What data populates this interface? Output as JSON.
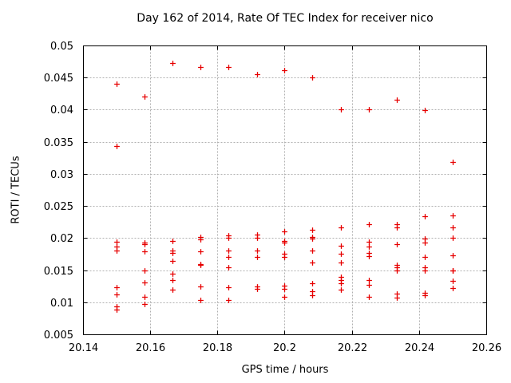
{
  "chart_data": {
    "type": "scatter",
    "title": "Day 162 of 2014, Rate Of TEC Index for receiver nico",
    "xlabel": "GPS time / hours",
    "ylabel": "ROTI / TECUs",
    "xlim": [
      20.14,
      20.26
    ],
    "ylim": [
      0.005,
      0.05
    ],
    "xticks": [
      20.14,
      20.16,
      20.18,
      20.2,
      20.22,
      20.24,
      20.26
    ],
    "xticklabels": [
      "20.14",
      "20.16",
      "20.18",
      "20.2",
      "20.22",
      "20.24",
      "20.26"
    ],
    "yticks": [
      0.005,
      0.01,
      0.015,
      0.02,
      0.025,
      0.03,
      0.035,
      0.04,
      0.045,
      0.05
    ],
    "yticklabels": [
      "0.005",
      "0.01",
      "0.015",
      "0.02",
      "0.025",
      "0.03",
      "0.035",
      "0.04",
      "0.045",
      "0.05"
    ],
    "grid": true,
    "legend": "none",
    "marker": "plus",
    "colors": {
      "marker": "#e60000",
      "grid": "#b0b0b0",
      "axis": "#000000",
      "background": "#ffffff"
    },
    "series": [
      {
        "name": "ROTI",
        "points": [
          [
            20.15,
            0.044
          ],
          [
            20.15,
            0.0343
          ],
          [
            20.15,
            0.0194
          ],
          [
            20.15,
            0.0187
          ],
          [
            20.15,
            0.0181
          ],
          [
            20.15,
            0.0123
          ],
          [
            20.15,
            0.0112
          ],
          [
            20.15,
            0.0094
          ],
          [
            20.15,
            0.0089
          ],
          [
            20.1583,
            0.0421
          ],
          [
            20.1583,
            0.0193
          ],
          [
            20.1583,
            0.019
          ],
          [
            20.1583,
            0.0179
          ],
          [
            20.1583,
            0.015
          ],
          [
            20.1583,
            0.0131
          ],
          [
            20.1583,
            0.0108
          ],
          [
            20.1583,
            0.0097
          ],
          [
            20.1667,
            0.0473
          ],
          [
            20.1667,
            0.0195
          ],
          [
            20.1667,
            0.0181
          ],
          [
            20.1667,
            0.0177
          ],
          [
            20.1667,
            0.0164
          ],
          [
            20.1667,
            0.0144
          ],
          [
            20.1667,
            0.0135
          ],
          [
            20.1667,
            0.0119
          ],
          [
            20.175,
            0.0466
          ],
          [
            20.175,
            0.0202
          ],
          [
            20.175,
            0.0198
          ],
          [
            20.175,
            0.0179
          ],
          [
            20.175,
            0.016
          ],
          [
            20.175,
            0.0158
          ],
          [
            20.175,
            0.0125
          ],
          [
            20.175,
            0.0104
          ],
          [
            20.1833,
            0.0466
          ],
          [
            20.1833,
            0.0204
          ],
          [
            20.1833,
            0.02
          ],
          [
            20.1833,
            0.018
          ],
          [
            20.1833,
            0.0171
          ],
          [
            20.1833,
            0.0154
          ],
          [
            20.1833,
            0.0123
          ],
          [
            20.1833,
            0.0104
          ],
          [
            20.1917,
            0.0455
          ],
          [
            20.1917,
            0.0205
          ],
          [
            20.1917,
            0.02
          ],
          [
            20.1917,
            0.018
          ],
          [
            20.1917,
            0.017
          ],
          [
            20.1917,
            0.0125
          ],
          [
            20.1917,
            0.0121
          ],
          [
            20.2,
            0.0462
          ],
          [
            20.2,
            0.021
          ],
          [
            20.2,
            0.0196
          ],
          [
            20.2,
            0.0193
          ],
          [
            20.2,
            0.0176
          ],
          [
            20.2,
            0.017
          ],
          [
            20.2,
            0.0126
          ],
          [
            20.2,
            0.0121
          ],
          [
            20.2,
            0.0108
          ],
          [
            20.2083,
            0.045
          ],
          [
            20.2083,
            0.0213
          ],
          [
            20.2083,
            0.0202
          ],
          [
            20.2083,
            0.0199
          ],
          [
            20.2083,
            0.0181
          ],
          [
            20.2083,
            0.0162
          ],
          [
            20.2083,
            0.013
          ],
          [
            20.2083,
            0.0117
          ],
          [
            20.2083,
            0.0111
          ],
          [
            20.2167,
            0.04
          ],
          [
            20.2167,
            0.0217
          ],
          [
            20.2167,
            0.0188
          ],
          [
            20.2167,
            0.0176
          ],
          [
            20.2167,
            0.0162
          ],
          [
            20.2167,
            0.0139
          ],
          [
            20.2167,
            0.0134
          ],
          [
            20.2167,
            0.013
          ],
          [
            20.2167,
            0.0119
          ],
          [
            20.225,
            0.0401
          ],
          [
            20.225,
            0.0222
          ],
          [
            20.225,
            0.0194
          ],
          [
            20.225,
            0.0187
          ],
          [
            20.225,
            0.0177
          ],
          [
            20.225,
            0.0172
          ],
          [
            20.225,
            0.0134
          ],
          [
            20.225,
            0.0127
          ],
          [
            20.225,
            0.0108
          ],
          [
            20.2333,
            0.0416
          ],
          [
            20.2333,
            0.0222
          ],
          [
            20.2333,
            0.0217
          ],
          [
            20.2333,
            0.0191
          ],
          [
            20.2333,
            0.0158
          ],
          [
            20.2333,
            0.0154
          ],
          [
            20.2333,
            0.015
          ],
          [
            20.2333,
            0.0113
          ],
          [
            20.2333,
            0.0107
          ],
          [
            20.2417,
            0.0399
          ],
          [
            20.2417,
            0.0234
          ],
          [
            20.2417,
            0.0199
          ],
          [
            20.2417,
            0.0193
          ],
          [
            20.2417,
            0.0171
          ],
          [
            20.2417,
            0.0155
          ],
          [
            20.2417,
            0.015
          ],
          [
            20.2417,
            0.0115
          ],
          [
            20.2417,
            0.0111
          ],
          [
            20.25,
            0.0318
          ],
          [
            20.25,
            0.0235
          ],
          [
            20.25,
            0.0217
          ],
          [
            20.25,
            0.02
          ],
          [
            20.25,
            0.0173
          ],
          [
            20.25,
            0.015
          ],
          [
            20.25,
            0.0149
          ],
          [
            20.25,
            0.0133
          ],
          [
            20.25,
            0.0122
          ]
        ]
      }
    ]
  }
}
